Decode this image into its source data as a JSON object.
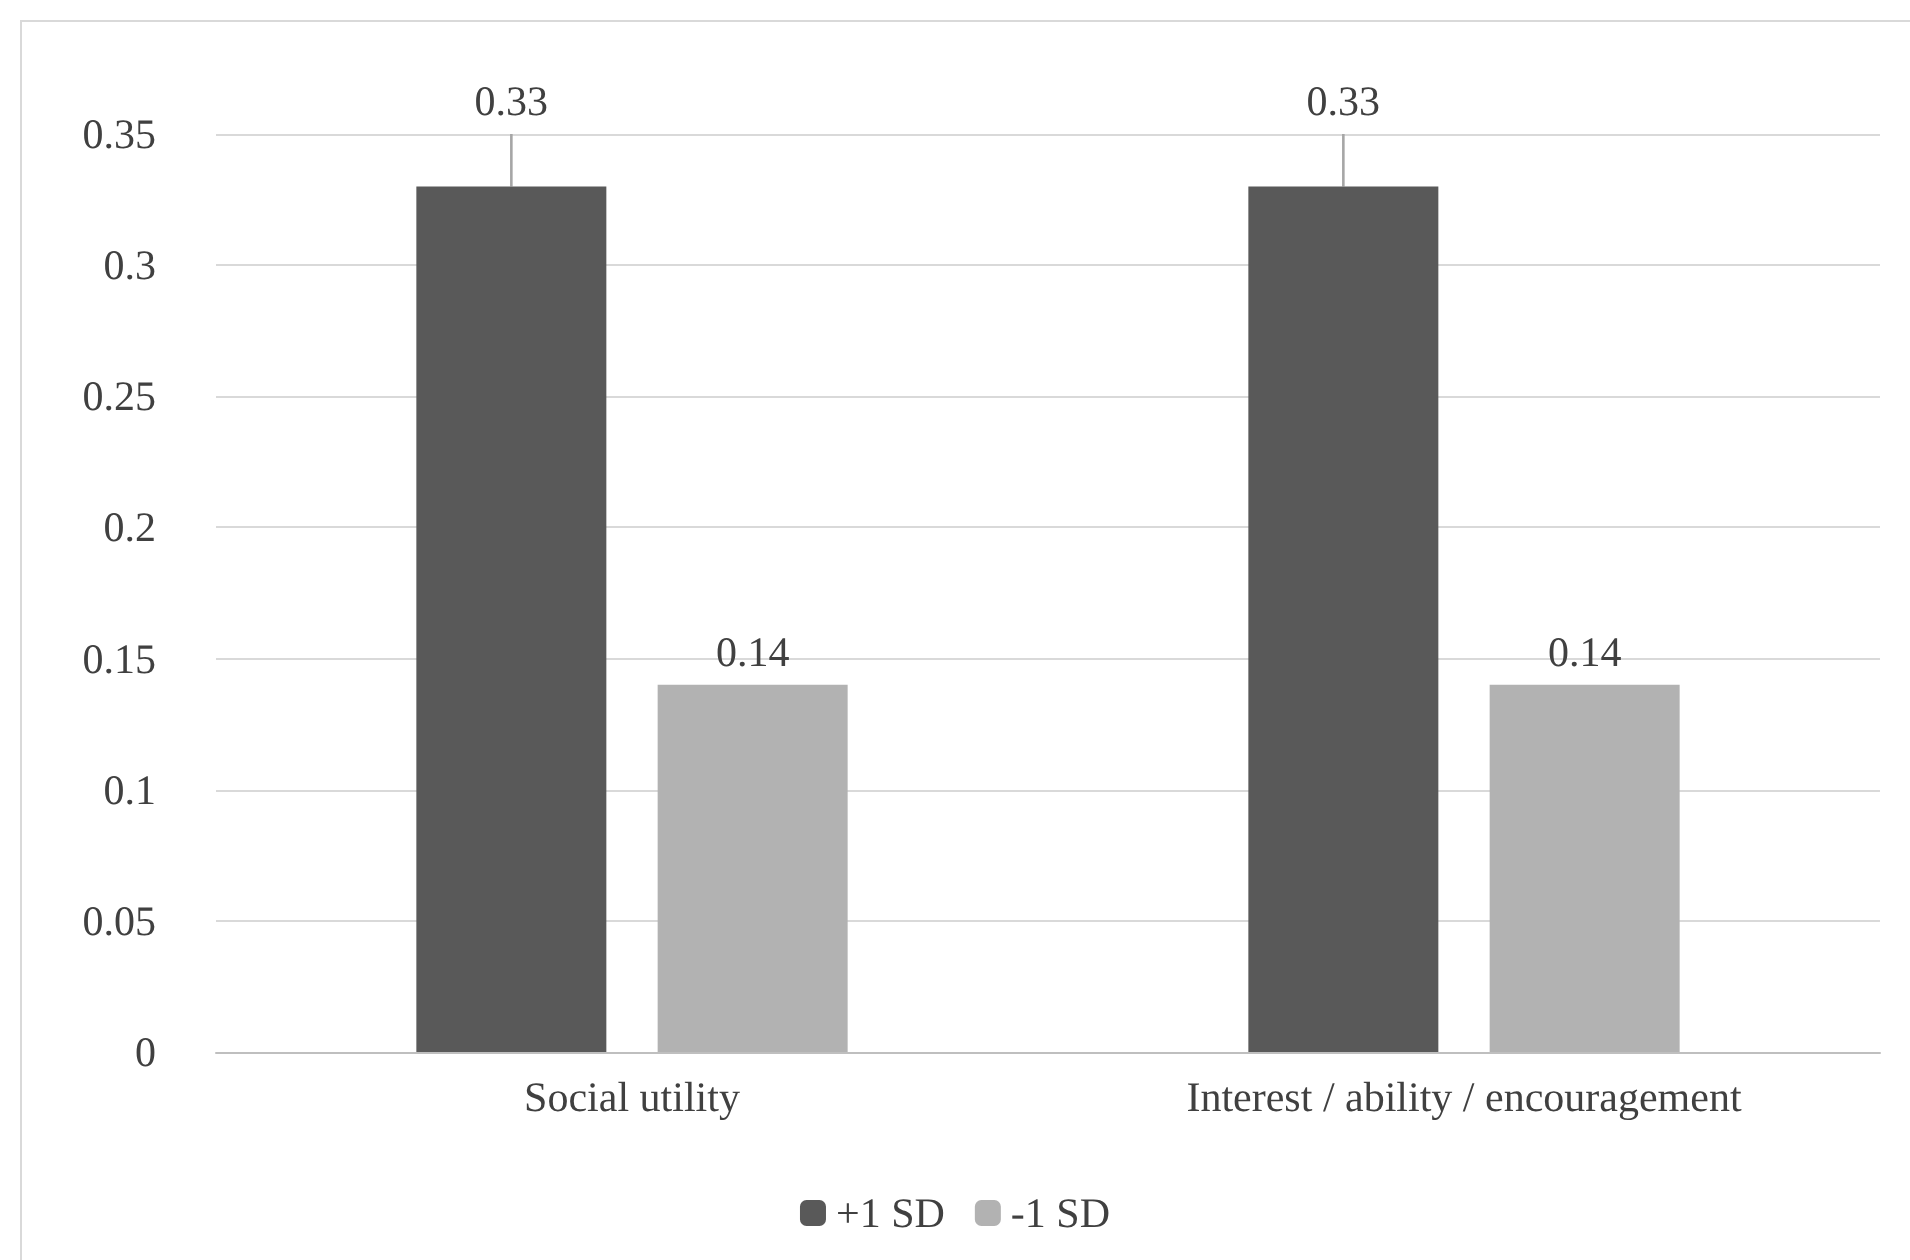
{
  "chart_data": {
    "type": "bar",
    "categories": [
      "Social utility",
      "Interest / ability / encouragement"
    ],
    "series": [
      {
        "name": "+1 SD",
        "color": "#595959",
        "values": [
          0.33,
          0.33
        ],
        "errors": [
          [
            0.33,
            0.35
          ],
          [
            0.33,
            0.35
          ]
        ]
      },
      {
        "name": "-1 SD",
        "color": "#b2b2b2",
        "values": [
          0.14,
          0.14
        ]
      }
    ],
    "ylim": [
      0,
      0.35
    ],
    "yticks": [
      0,
      0.05,
      0.1,
      0.15,
      0.2,
      0.25,
      0.3,
      0.35
    ],
    "grid": "y",
    "legend": "bottom",
    "data_labels": true
  }
}
